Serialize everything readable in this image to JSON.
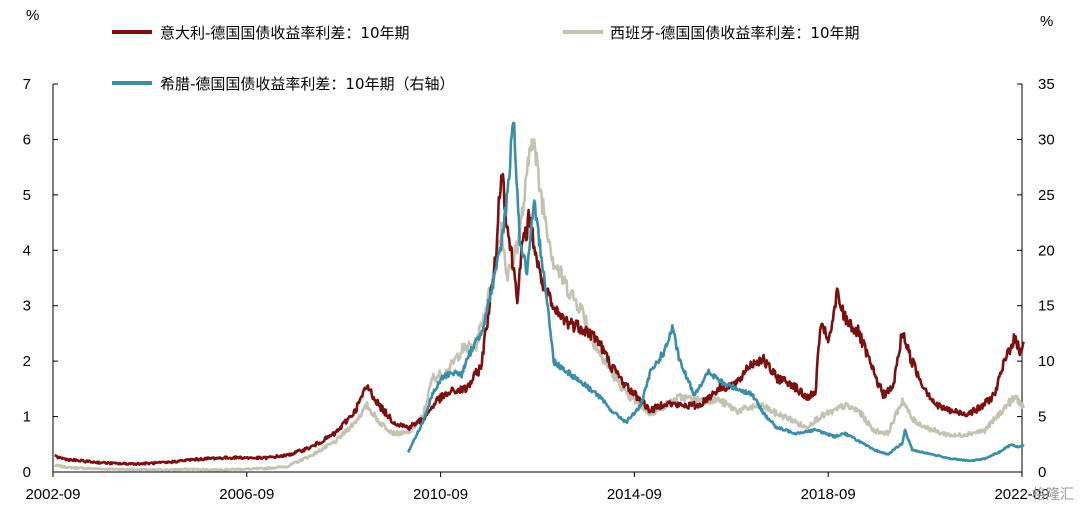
{
  "chart_data": {
    "type": "line",
    "left_unit": "%",
    "right_unit": "%",
    "left_axis": {
      "min": 0,
      "max": 7,
      "ticks": [
        "0",
        "1",
        "2",
        "3",
        "4",
        "5",
        "6",
        "7"
      ]
    },
    "right_axis": {
      "min": 0,
      "max": 35,
      "ticks": [
        "0",
        "5",
        "10",
        "15",
        "20",
        "25",
        "30",
        "35"
      ]
    },
    "x_ticks": [
      "2002-09",
      "2006-09",
      "2010-09",
      "2014-09",
      "2018-09",
      "2022-09"
    ],
    "x_range": [
      "2002-09",
      "2022-09"
    ],
    "series": [
      {
        "name": "意大利-德国国债收益率利差：10年期",
        "color": "#7b1010",
        "axis": "left",
        "points": [
          [
            2002.7,
            0.28
          ],
          [
            2003.0,
            0.22
          ],
          [
            2003.5,
            0.18
          ],
          [
            2004.0,
            0.15
          ],
          [
            2004.5,
            0.15
          ],
          [
            2005.0,
            0.17
          ],
          [
            2005.5,
            0.22
          ],
          [
            2006.0,
            0.25
          ],
          [
            2006.5,
            0.26
          ],
          [
            2007.0,
            0.25
          ],
          [
            2007.5,
            0.3
          ],
          [
            2008.0,
            0.45
          ],
          [
            2008.5,
            0.7
          ],
          [
            2008.9,
            1.1
          ],
          [
            2009.15,
            1.55
          ],
          [
            2009.4,
            1.2
          ],
          [
            2009.7,
            0.9
          ],
          [
            2010.0,
            0.8
          ],
          [
            2010.3,
            0.95
          ],
          [
            2010.6,
            1.3
          ],
          [
            2010.9,
            1.45
          ],
          [
            2011.2,
            1.5
          ],
          [
            2011.5,
            1.9
          ],
          [
            2011.8,
            3.8
          ],
          [
            2011.92,
            5.55
          ],
          [
            2012.05,
            4.4
          ],
          [
            2012.25,
            3.2
          ],
          [
            2012.35,
            4.0
          ],
          [
            2012.5,
            4.6
          ],
          [
            2012.7,
            3.6
          ],
          [
            2013.0,
            2.9
          ],
          [
            2013.3,
            2.7
          ],
          [
            2013.6,
            2.6
          ],
          [
            2013.9,
            2.4
          ],
          [
            2014.2,
            1.9
          ],
          [
            2014.5,
            1.55
          ],
          [
            2014.8,
            1.3
          ],
          [
            2015.0,
            1.1
          ],
          [
            2015.3,
            1.25
          ],
          [
            2015.6,
            1.2
          ],
          [
            2016.0,
            1.2
          ],
          [
            2016.4,
            1.5
          ],
          [
            2016.8,
            1.6
          ],
          [
            2017.0,
            1.9
          ],
          [
            2017.3,
            2.05
          ],
          [
            2017.6,
            1.7
          ],
          [
            2017.9,
            1.6
          ],
          [
            2018.2,
            1.35
          ],
          [
            2018.4,
            1.4
          ],
          [
            2018.5,
            2.6
          ],
          [
            2018.7,
            2.4
          ],
          [
            2018.85,
            3.2
          ],
          [
            2019.0,
            2.8
          ],
          [
            2019.3,
            2.5
          ],
          [
            2019.6,
            1.8
          ],
          [
            2019.8,
            1.4
          ],
          [
            2020.0,
            1.5
          ],
          [
            2020.2,
            2.55
          ],
          [
            2020.35,
            2.1
          ],
          [
            2020.6,
            1.6
          ],
          [
            2020.9,
            1.2
          ],
          [
            2021.2,
            1.1
          ],
          [
            2021.5,
            1.05
          ],
          [
            2021.8,
            1.15
          ],
          [
            2022.1,
            1.4
          ],
          [
            2022.35,
            2.1
          ],
          [
            2022.5,
            2.4
          ],
          [
            2022.62,
            2.2
          ],
          [
            2022.7,
            2.35
          ]
        ]
      },
      {
        "name": "西班牙-德国国债收益率利差：10年期",
        "color": "#c4c3b3",
        "axis": "left",
        "points": [
          [
            2002.7,
            0.12
          ],
          [
            2003.0,
            0.08
          ],
          [
            2003.5,
            0.06
          ],
          [
            2004.0,
            0.05
          ],
          [
            2004.5,
            0.04
          ],
          [
            2005.0,
            0.04
          ],
          [
            2005.5,
            0.05
          ],
          [
            2006.0,
            0.04
          ],
          [
            2006.5,
            0.05
          ],
          [
            2007.0,
            0.06
          ],
          [
            2007.5,
            0.1
          ],
          [
            2008.0,
            0.3
          ],
          [
            2008.5,
            0.55
          ],
          [
            2008.9,
            0.9
          ],
          [
            2009.15,
            1.2
          ],
          [
            2009.4,
            0.9
          ],
          [
            2009.7,
            0.7
          ],
          [
            2010.0,
            0.7
          ],
          [
            2010.3,
            1.0
          ],
          [
            2010.5,
            1.7
          ],
          [
            2010.8,
            1.8
          ],
          [
            2011.1,
            2.2
          ],
          [
            2011.4,
            2.3
          ],
          [
            2011.7,
            3.3
          ],
          [
            2011.92,
            4.4
          ],
          [
            2012.05,
            3.5
          ],
          [
            2012.3,
            4.3
          ],
          [
            2012.45,
            5.3
          ],
          [
            2012.55,
            6.2
          ],
          [
            2012.7,
            5.2
          ],
          [
            2013.0,
            3.8
          ],
          [
            2013.3,
            3.3
          ],
          [
            2013.6,
            2.9
          ],
          [
            2013.9,
            2.2
          ],
          [
            2014.2,
            1.8
          ],
          [
            2014.5,
            1.4
          ],
          [
            2014.8,
            1.2
          ],
          [
            2015.0,
            1.05
          ],
          [
            2015.3,
            1.2
          ],
          [
            2015.6,
            1.35
          ],
          [
            2016.0,
            1.3
          ],
          [
            2016.4,
            1.3
          ],
          [
            2016.8,
            1.1
          ],
          [
            2017.0,
            1.15
          ],
          [
            2017.3,
            1.2
          ],
          [
            2017.6,
            1.05
          ],
          [
            2017.9,
            0.95
          ],
          [
            2018.2,
            0.8
          ],
          [
            2018.5,
            1.0
          ],
          [
            2018.8,
            1.1
          ],
          [
            2019.0,
            1.2
          ],
          [
            2019.3,
            1.1
          ],
          [
            2019.6,
            0.75
          ],
          [
            2019.9,
            0.7
          ],
          [
            2020.2,
            1.3
          ],
          [
            2020.4,
            0.95
          ],
          [
            2020.7,
            0.8
          ],
          [
            2021.0,
            0.7
          ],
          [
            2021.3,
            0.65
          ],
          [
            2021.6,
            0.7
          ],
          [
            2021.9,
            0.75
          ],
          [
            2022.1,
            0.95
          ],
          [
            2022.4,
            1.25
          ],
          [
            2022.55,
            1.35
          ],
          [
            2022.7,
            1.15
          ]
        ]
      },
      {
        "name": "希腊-德国国债收益率利差：10年期（右轴）",
        "color": "#3a8ea5",
        "axis": "right",
        "points": [
          [
            2010.0,
            1.8
          ],
          [
            2010.3,
            4.5
          ],
          [
            2010.5,
            7.0
          ],
          [
            2010.7,
            8.5
          ],
          [
            2010.9,
            9.0
          ],
          [
            2011.1,
            8.8
          ],
          [
            2011.3,
            11.0
          ],
          [
            2011.5,
            12.5
          ],
          [
            2011.7,
            16.0
          ],
          [
            2011.9,
            20.0
          ],
          [
            2012.05,
            25.0
          ],
          [
            2012.17,
            32.3
          ],
          [
            2012.3,
            21.0
          ],
          [
            2012.45,
            18.0
          ],
          [
            2012.6,
            24.0
          ],
          [
            2012.8,
            18.0
          ],
          [
            2013.0,
            10.0
          ],
          [
            2013.3,
            9.0
          ],
          [
            2013.6,
            8.0
          ],
          [
            2013.9,
            7.0
          ],
          [
            2014.2,
            5.5
          ],
          [
            2014.5,
            4.5
          ],
          [
            2014.8,
            6.0
          ],
          [
            2015.0,
            9.0
          ],
          [
            2015.3,
            11.0
          ],
          [
            2015.45,
            13.0
          ],
          [
            2015.6,
            10.0
          ],
          [
            2015.9,
            7.0
          ],
          [
            2016.2,
            9.0
          ],
          [
            2016.5,
            8.0
          ],
          [
            2016.8,
            7.5
          ],
          [
            2017.1,
            7.0
          ],
          [
            2017.3,
            5.5
          ],
          [
            2017.6,
            4.0
          ],
          [
            2018.0,
            3.5
          ],
          [
            2018.4,
            3.8
          ],
          [
            2018.8,
            3.2
          ],
          [
            2019.0,
            3.5
          ],
          [
            2019.3,
            2.8
          ],
          [
            2019.6,
            2.0
          ],
          [
            2019.9,
            1.6
          ],
          [
            2020.2,
            2.6
          ],
          [
            2020.25,
            3.8
          ],
          [
            2020.4,
            2.0
          ],
          [
            2020.8,
            1.6
          ],
          [
            2021.2,
            1.2
          ],
          [
            2021.6,
            1.0
          ],
          [
            2021.9,
            1.2
          ],
          [
            2022.2,
            1.8
          ],
          [
            2022.45,
            2.5
          ],
          [
            2022.6,
            2.2
          ],
          [
            2022.7,
            2.5
          ]
        ]
      }
    ],
    "watermark": "格隆汇"
  }
}
